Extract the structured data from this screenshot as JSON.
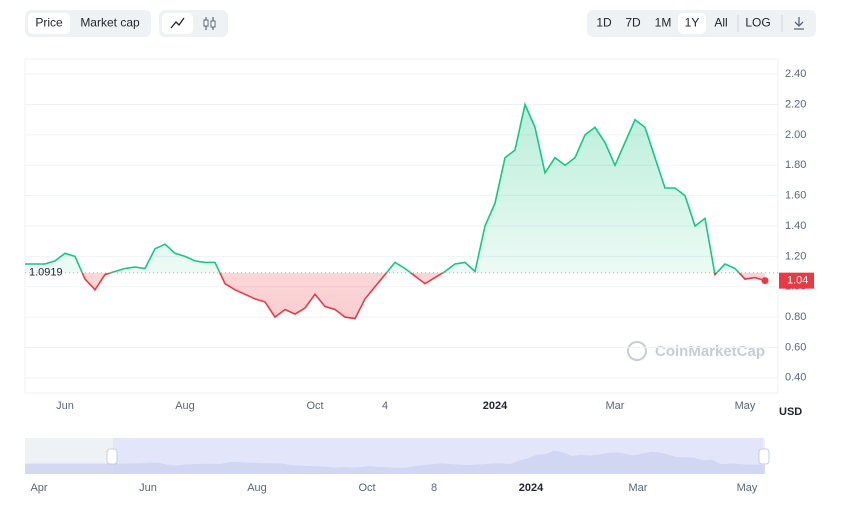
{
  "toolbar": {
    "tabs": [
      "Price",
      "Market cap"
    ],
    "ranges": [
      "1D",
      "7D",
      "1M",
      "1Y",
      "All",
      "LOG"
    ]
  },
  "chart_data": {
    "type": "line",
    "baseline": {
      "value": 1.0919,
      "label": "1.0919"
    },
    "last_label": "1.04",
    "currency": "USD",
    "watermark": "CoinMarketCap",
    "up_color": "#16c784",
    "down_color": "#ea3943",
    "categories": [
      null,
      null,
      null,
      null,
      "Jun",
      null,
      null,
      null,
      null,
      null,
      null,
      null,
      null,
      null,
      null,
      null,
      "Aug",
      null,
      null,
      null,
      null,
      null,
      null,
      null,
      null,
      null,
      null,
      null,
      null,
      "Oct",
      null,
      null,
      null,
      null,
      null,
      null,
      "4",
      null,
      null,
      null,
      null,
      null,
      null,
      null,
      null,
      null,
      null,
      "2024",
      null,
      null,
      null,
      null,
      null,
      null,
      null,
      null,
      null,
      null,
      null,
      "Mar",
      null,
      null,
      null,
      null,
      null,
      null,
      null,
      null,
      null,
      null,
      null,
      null,
      "May",
      null,
      null
    ],
    "values": [
      1.15,
      1.15,
      1.15,
      1.17,
      1.22,
      1.2,
      1.05,
      0.98,
      1.08,
      1.1,
      1.12,
      1.13,
      1.12,
      1.25,
      1.28,
      1.22,
      1.2,
      1.17,
      1.16,
      1.16,
      1.02,
      0.98,
      0.95,
      0.92,
      0.9,
      0.8,
      0.85,
      0.82,
      0.86,
      0.95,
      0.87,
      0.85,
      0.8,
      0.79,
      0.92,
      1.0,
      1.08,
      1.16,
      1.12,
      1.07,
      1.02,
      1.06,
      1.1,
      1.15,
      1.16,
      1.1,
      1.4,
      1.55,
      1.85,
      1.9,
      2.2,
      2.05,
      1.75,
      1.85,
      1.8,
      1.85,
      2.0,
      2.05,
      1.95,
      1.8,
      1.95,
      2.1,
      2.05,
      1.85,
      1.65,
      1.65,
      1.6,
      1.4,
      1.45,
      1.08,
      1.15,
      1.12,
      1.05,
      1.06,
      1.04
    ],
    "ylim": [
      0.3,
      2.5
    ],
    "yticks": [
      {
        "value": 0.4,
        "label": "0.40"
      },
      {
        "value": 0.6,
        "label": "0.60"
      },
      {
        "value": 0.8,
        "label": "0.80"
      },
      {
        "value": 1.0,
        "label": "1.00"
      },
      {
        "value": 1.2,
        "label": "1.20"
      },
      {
        "value": 1.4,
        "label": "1.40"
      },
      {
        "value": 1.6,
        "label": "1.60"
      },
      {
        "value": 1.8,
        "label": "1.80"
      },
      {
        "value": 2.0,
        "label": "2.00"
      },
      {
        "value": 2.2,
        "label": "2.20"
      },
      {
        "value": 2.4,
        "label": "2.40"
      }
    ],
    "grid": true
  },
  "navigator": {
    "labels": [
      "Apr",
      "Jun",
      "Aug",
      "Oct",
      "8",
      "2024",
      "Mar",
      "May"
    ]
  }
}
